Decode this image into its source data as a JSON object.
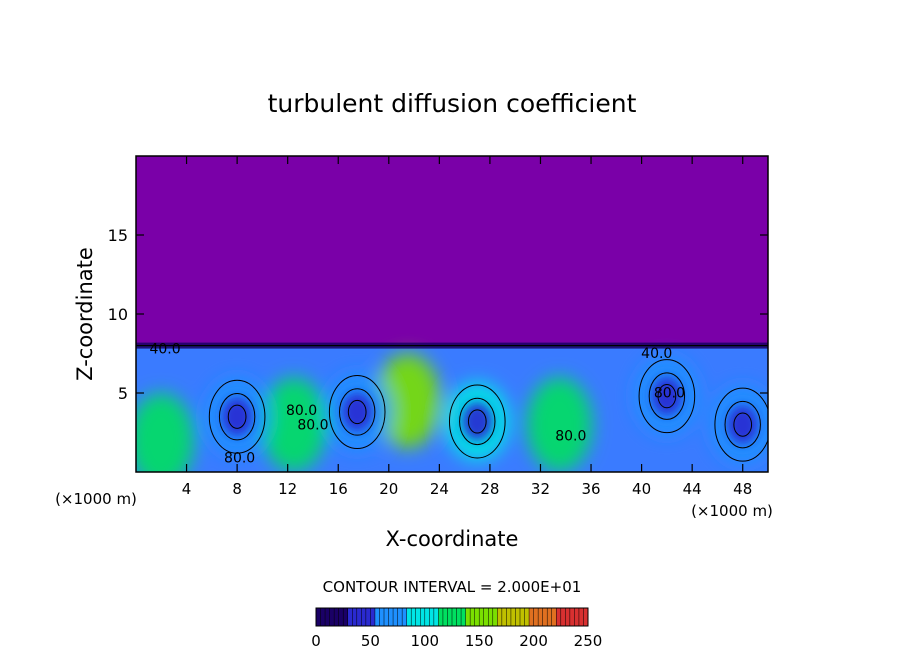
{
  "chart_data": {
    "type": "heatmap",
    "title": "turbulent diffusion coefficient",
    "xlabel": "X-coordinate",
    "ylabel": "Z-coordinate",
    "x_unit": "(×1000 m)",
    "x_unit_right": "(×1000 m)",
    "xlim": [
      0,
      50
    ],
    "ylim": [
      0,
      20
    ],
    "x_ticks": [
      4,
      8,
      12,
      16,
      20,
      24,
      28,
      32,
      36,
      40,
      44,
      48
    ],
    "y_ticks": [
      5,
      10,
      15
    ],
    "background_value": 0,
    "mixed_layer_top_km": 8,
    "eddies": [
      {
        "x": 8,
        "z": 3.5,
        "value": 70
      },
      {
        "x": 17.5,
        "z": 3.8,
        "value": 65
      },
      {
        "x": 27,
        "z": 3.2,
        "value": 85
      },
      {
        "x": 42,
        "z": 4.8,
        "value": 75
      },
      {
        "x": 48,
        "z": 3.0,
        "value": 70
      }
    ],
    "green_bands": [
      {
        "x": 12.5,
        "z": 3.0,
        "value": 135
      },
      {
        "x": 21.5,
        "z": 4.5,
        "value": 140
      },
      {
        "x": 33.5,
        "z": 3.0,
        "value": 130
      },
      {
        "x": 2,
        "z": 2.0,
        "value": 125
      }
    ],
    "contour_labels": [
      {
        "text": "40.0",
        "x": 2.3,
        "z": 7.5
      },
      {
        "text": "80.0",
        "x": 8.2,
        "z": 0.6
      },
      {
        "text": "80.0",
        "x": 13.1,
        "z": 3.6
      },
      {
        "text": "80.0",
        "x": 14.0,
        "z": 2.7
      },
      {
        "text": "80.0",
        "x": 34.4,
        "z": 2.0
      },
      {
        "text": "40.0",
        "x": 41.2,
        "z": 7.2
      },
      {
        "text": "80.0",
        "x": 42.2,
        "z": 4.7
      }
    ],
    "contour_interval_label": "CONTOUR INTERVAL = 2.000E+01",
    "colorbar": {
      "min": 0,
      "max": 250,
      "ticks": [
        "0",
        "50",
        "100",
        "150",
        "200",
        "250"
      ],
      "colors": [
        "#1a0066",
        "#2a2ad0",
        "#1e90ff",
        "#00e5e5",
        "#00e060",
        "#7ae000",
        "#c0c000",
        "#e07020",
        "#d83030"
      ]
    },
    "background_color": "#7a00a8"
  }
}
